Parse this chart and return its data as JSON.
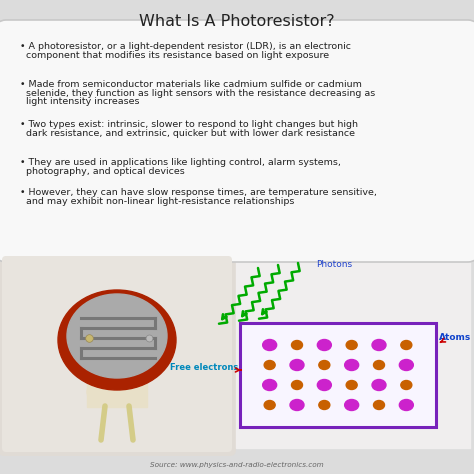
{
  "title": "What Is A Photoresistor?",
  "title_fontsize": 11.5,
  "bg_color": "#dcdcdc",
  "box_color": "#f8f8f8",
  "box_edge_color": "#c8c8c8",
  "bullet_points": [
    "A photoresistor, or a light-dependent resistor (LDR), is an electronic\n  component that modifies its resistance based on light exposure",
    "Made from semiconductor materials like cadmium sulfide or cadmium\n  selenide, they function as light sensors with the resistance decreasing as\n  light intensity increases",
    "Two types exist: intrinsic, slower to respond to light changes but high\n  dark resistance, and extrinsic, quicker but with lower dark resistance",
    "They are used in applications like lighting control, alarm systems,\n  photography, and optical devices",
    "However, they can have slow response times, are temperature sensitive,\n  and may exhibit non-linear light-resistance relationships"
  ],
  "bullet_fontsize": 6.8,
  "photon_label": "Photons",
  "atoms_label": "Atoms",
  "free_electrons_label": "Free electrons",
  "source_text": "Source: www.physics-and-radio-electronics.com",
  "source_fontsize": 5.2,
  "atom_color": "#c86000",
  "electron_color": "#cc22cc",
  "photon_color": "#00aa00",
  "box_border_color": "#7722bb",
  "atom_label_color": "#1144cc",
  "electron_label_color": "#0088bb",
  "photon_label_color": "#2244cc",
  "arrow_color": "#cc0000",
  "photo_bg_color": "#e0dbd5",
  "ldr_body_color": "#aa2200",
  "ldr_disc_color": "#aaaaaa",
  "ldr_track_color": "#777777",
  "ldr_wire_color": "#d4cc88",
  "diag_bg_color": "#f0eeee",
  "diag_box_fill": "#f8f5ff"
}
